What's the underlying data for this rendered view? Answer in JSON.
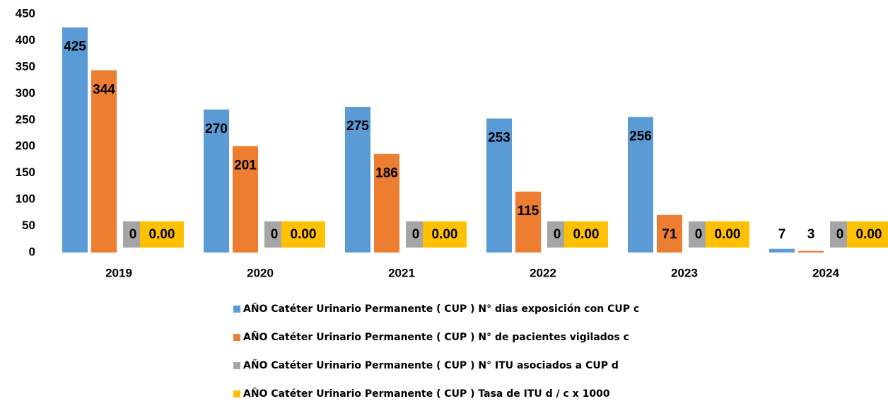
{
  "chart_data": {
    "type": "bar",
    "categories": [
      "2019",
      "2020",
      "2021",
      "2022",
      "2023",
      "2024"
    ],
    "series": [
      {
        "name": "AÑO Catéter Urinario Permanente ( CUP ) N° dias exposición con CUP c",
        "color": "#5b9bd5",
        "values": [
          425,
          270,
          275,
          253,
          256,
          7
        ]
      },
      {
        "name": "AÑO Catéter Urinario Permanente ( CUP ) N° de pacientes vigilados c",
        "color": "#ed7d31",
        "values": [
          344,
          201,
          186,
          115,
          71,
          3
        ]
      },
      {
        "name": "AÑO Catéter Urinario Permanente ( CUP ) N° ITU asociados a CUP d",
        "color": "#a5a5a5",
        "values": [
          0,
          0,
          0,
          0,
          0,
          0
        ]
      },
      {
        "name": "AÑO Catéter Urinario Permanente ( CUP ) Tasa de ITU d / c x 1000",
        "color": "#ffc000",
        "values": [
          0,
          0,
          0,
          0,
          0,
          0
        ],
        "value_labels": [
          "0.00",
          "0.00",
          "0.00",
          "0.00",
          "0.00",
          "0.00"
        ]
      }
    ],
    "ylim": [
      0,
      450
    ],
    "yticks": [
      0,
      50,
      100,
      150,
      200,
      250,
      300,
      350,
      400,
      450
    ],
    "grid": false,
    "legend": "bottom"
  }
}
